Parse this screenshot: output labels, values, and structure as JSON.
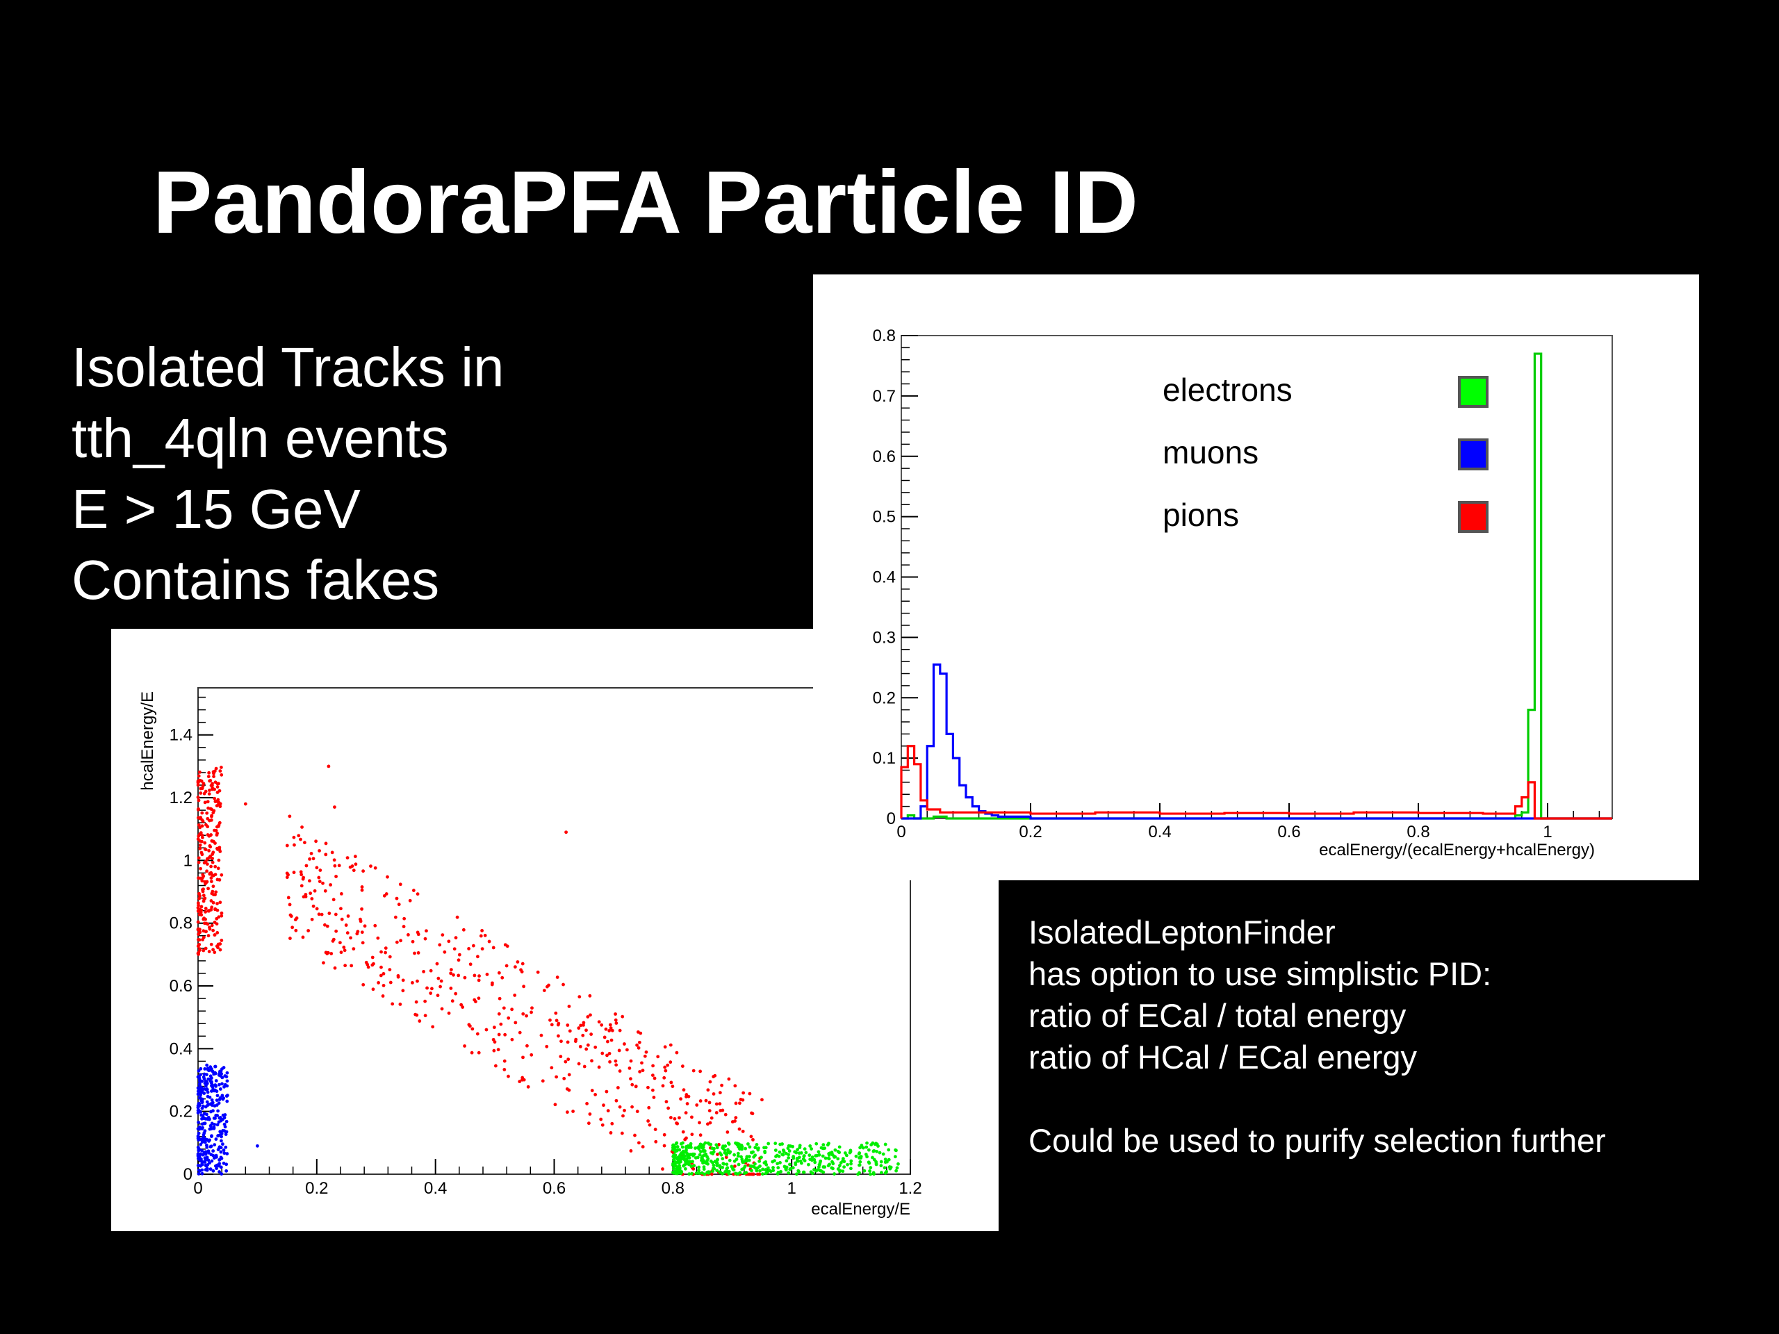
{
  "slide": {
    "title": "PandoraPFA Particle ID",
    "left_lines": [
      "Isolated Tracks in",
      "tth_4qln events",
      "E > 15 GeV",
      "Contains fakes"
    ],
    "note_lines": [
      "IsolatedLeptonFinder",
      "has option to use simplistic PID:",
      "ratio of ECal / total energy",
      "ratio of HCal / ECal energy",
      "",
      "Could be used to purify selection further"
    ]
  },
  "chart_data": [
    {
      "type": "scatter",
      "xlabel": "ecalEnergy/E",
      "ylabel": "hcalEnergy/E",
      "xlim": [
        0,
        1.2
      ],
      "ylim": [
        0,
        1.55
      ],
      "xticks": [
        "0",
        "0.2",
        "0.4",
        "0.6",
        "0.8",
        "1",
        "1.2"
      ],
      "yticks": [
        "0",
        "0.2",
        "0.4",
        "0.6",
        "0.8",
        "1",
        "1.2",
        "1.4"
      ],
      "series": [
        {
          "color": "#ff0000",
          "clusters": [
            {
              "x": [
                0.0,
                0.04
              ],
              "y": [
                0.7,
                1.3
              ],
              "n": 260
            },
            {
              "x": [
                0.15,
                0.95
              ],
              "y": [
                0.0,
                0.95
              ],
              "n": 520,
              "band": true
            }
          ],
          "extra_points": [
            [
              0.62,
              1.09
            ],
            [
              0.22,
              1.3
            ],
            [
              0.08,
              1.18
            ],
            [
              0.23,
              1.17
            ]
          ]
        },
        {
          "color": "#0000ff",
          "clusters": [
            {
              "x": [
                0.0,
                0.05
              ],
              "y": [
                0.0,
                0.35
              ],
              "n": 320
            }
          ],
          "extra_points": [
            [
              0.1,
              0.09
            ]
          ]
        },
        {
          "color": "#00ee00",
          "clusters": [
            {
              "x": [
                0.8,
                1.18
              ],
              "y": [
                0.0,
                0.1
              ],
              "n": 520
            }
          ]
        }
      ]
    },
    {
      "type": "line",
      "xlabel": "ecalEnergy/(ecalEnergy+hcalEnergy)",
      "ylabel": "",
      "xlim": [
        0,
        1.1
      ],
      "ylim": [
        0,
        0.8
      ],
      "xticks": [
        "0",
        "0.2",
        "0.4",
        "0.6",
        "0.8",
        "1"
      ],
      "yticks": [
        "0",
        "0.1",
        "0.2",
        "0.3",
        "0.4",
        "0.5",
        "0.6",
        "0.7",
        "0.8"
      ],
      "bin_width": 0.01,
      "legend": {
        "position": "top-right",
        "entries": [
          {
            "label": "electrons",
            "color": "#00ff00"
          },
          {
            "label": "muons",
            "color": "#0000ff"
          },
          {
            "label": "pions",
            "color": "#ff0000"
          }
        ]
      },
      "series": [
        {
          "name": "electrons",
          "color": "#00cc00",
          "bins": [
            [
              0.0,
              0.01,
              0.0
            ],
            [
              0.01,
              0.02,
              0.005
            ],
            [
              0.02,
              0.05,
              0.0
            ],
            [
              0.05,
              0.07,
              0.003
            ],
            [
              0.07,
              0.95,
              0.0
            ],
            [
              0.95,
              0.96,
              0.005
            ],
            [
              0.96,
              0.97,
              0.01
            ],
            [
              0.97,
              0.98,
              0.18
            ],
            [
              0.98,
              0.99,
              0.77
            ],
            [
              0.99,
              1.1,
              0.0
            ]
          ]
        },
        {
          "name": "muons",
          "color": "#0000ff",
          "bins": [
            [
              0.0,
              0.03,
              0.0
            ],
            [
              0.03,
              0.04,
              0.02
            ],
            [
              0.04,
              0.05,
              0.12
            ],
            [
              0.05,
              0.06,
              0.255
            ],
            [
              0.06,
              0.07,
              0.24
            ],
            [
              0.07,
              0.08,
              0.14
            ],
            [
              0.08,
              0.09,
              0.1
            ],
            [
              0.09,
              0.1,
              0.055
            ],
            [
              0.1,
              0.11,
              0.035
            ],
            [
              0.11,
              0.12,
              0.02
            ],
            [
              0.12,
              0.13,
              0.012
            ],
            [
              0.13,
              0.14,
              0.008
            ],
            [
              0.14,
              0.15,
              0.005
            ],
            [
              0.15,
              0.2,
              0.003
            ],
            [
              0.2,
              1.1,
              0.0
            ]
          ]
        },
        {
          "name": "pions",
          "color": "#ff0000",
          "bins": [
            [
              0.0,
              0.01,
              0.085
            ],
            [
              0.01,
              0.02,
              0.12
            ],
            [
              0.02,
              0.03,
              0.09
            ],
            [
              0.03,
              0.04,
              0.03
            ],
            [
              0.04,
              0.06,
              0.015
            ],
            [
              0.06,
              0.12,
              0.01
            ],
            [
              0.12,
              0.2,
              0.01
            ],
            [
              0.2,
              0.3,
              0.008
            ],
            [
              0.3,
              0.4,
              0.01
            ],
            [
              0.4,
              0.5,
              0.008
            ],
            [
              0.5,
              0.6,
              0.009
            ],
            [
              0.6,
              0.7,
              0.008
            ],
            [
              0.7,
              0.8,
              0.01
            ],
            [
              0.8,
              0.9,
              0.009
            ],
            [
              0.9,
              0.95,
              0.008
            ],
            [
              0.95,
              0.96,
              0.02
            ],
            [
              0.96,
              0.97,
              0.035
            ],
            [
              0.97,
              0.98,
              0.06
            ],
            [
              0.98,
              0.99,
              0.0
            ],
            [
              0.99,
              1.1,
              0.0
            ]
          ]
        }
      ]
    }
  ]
}
